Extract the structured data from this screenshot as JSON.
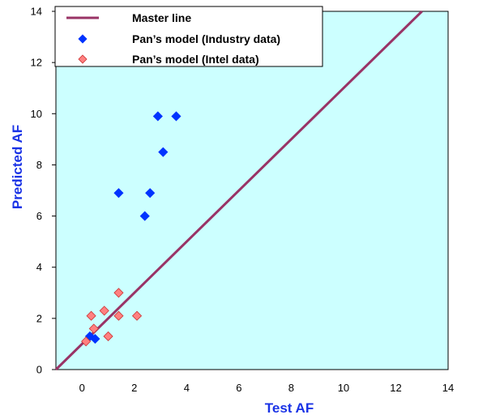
{
  "chart_data": {
    "type": "scatter",
    "xlabel": "Test AF",
    "ylabel": "Predicted AF",
    "xlim": [
      -1,
      14
    ],
    "ylim": [
      0,
      14
    ],
    "x_ticks": [
      0,
      2,
      4,
      6,
      8,
      10,
      12,
      14
    ],
    "y_ticks": [
      0,
      2,
      4,
      6,
      8,
      10,
      12,
      14
    ],
    "x_tick_labels": [
      "0",
      "2",
      "4",
      "6",
      "8",
      "10",
      "12",
      "14"
    ],
    "y_tick_labels": [
      "0",
      "2",
      "4",
      "6",
      "8",
      "10",
      "12",
      "14"
    ],
    "grid": false,
    "legend_position": "top-left",
    "plot_background": "#ccffff",
    "axis_title_color": "#1a33e6",
    "series": [
      {
        "name": "Master line",
        "kind": "line",
        "color": "#993366",
        "points": [
          [
            -1,
            0
          ],
          [
            13,
            14
          ]
        ]
      },
      {
        "name": "Pan’s model (Industry data)",
        "kind": "marker",
        "marker": "diamond",
        "color": "#0033ff",
        "points": [
          [
            0.3,
            1.3
          ],
          [
            0.5,
            1.2
          ],
          [
            1.4,
            6.9
          ],
          [
            2.4,
            6.0
          ],
          [
            2.6,
            6.9
          ],
          [
            2.9,
            9.9
          ],
          [
            3.1,
            8.5
          ],
          [
            3.6,
            9.9
          ]
        ]
      },
      {
        "name": "Pan’s model (Intel data)",
        "kind": "marker",
        "marker": "diamond",
        "color": "#ff8080",
        "points": [
          [
            0.15,
            1.1
          ],
          [
            0.35,
            2.1
          ],
          [
            0.45,
            1.6
          ],
          [
            0.85,
            2.3
          ],
          [
            1.0,
            1.3
          ],
          [
            1.4,
            2.1
          ],
          [
            1.4,
            3.0
          ],
          [
            2.1,
            2.1
          ]
        ]
      }
    ]
  }
}
